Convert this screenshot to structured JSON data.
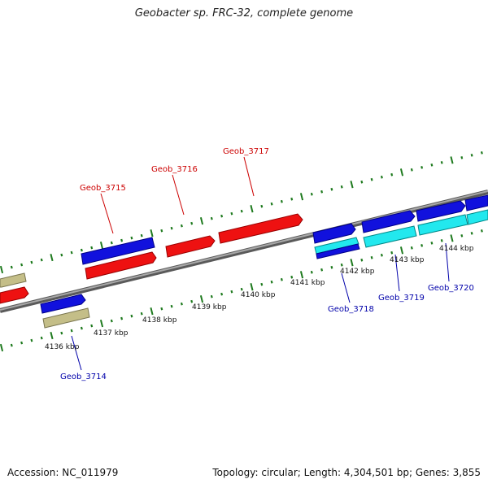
{
  "title": "Geobacter sp. FRC-32, complete genome",
  "footer": {
    "accession": "Accession: NC_011979",
    "summary": "Topology: circular; Length: 4,304,501 bp; Genes: 3,855"
  },
  "colors": {
    "backbone": "#7a7a7a",
    "tick": "#1e7a1e",
    "forward_label": "#cc0000",
    "reverse_label": "#0000aa",
    "red": "#ee1111",
    "blue": "#1111dd",
    "cyan": "#22e8ee",
    "olive": "#c4be88"
  },
  "kbp_labels": [
    "4136 kbp",
    "4137 kbp",
    "4138 kbp",
    "4139 kbp",
    "4140 kbp",
    "4141 kbp",
    "4142 kbp",
    "4143 kbp",
    "4144 kbp"
  ],
  "genes_upper": [
    "Geob_3715",
    "Geob_3716",
    "Geob_3717"
  ],
  "genes_lower": [
    "Geob_3714",
    "Geob_3718",
    "Geob_3719",
    "Geob_3720"
  ]
}
